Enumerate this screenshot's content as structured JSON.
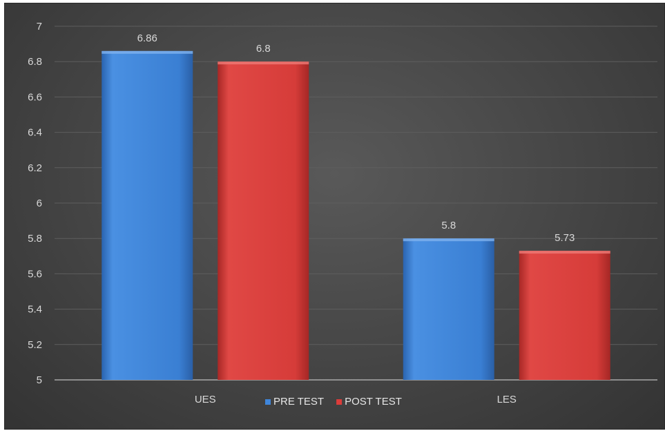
{
  "chart_data": {
    "type": "bar",
    "categories": [
      "UES",
      "LES"
    ],
    "series": [
      {
        "name": "PRE TEST",
        "values": [
          6.86,
          5.8
        ],
        "color": "#3f86db"
      },
      {
        "name": "POST TEST",
        "values": [
          6.8,
          5.73
        ],
        "color": "#dc3c3a"
      }
    ],
    "data_labels": [
      [
        "6.86",
        "5.8"
      ],
      [
        "6.8",
        "5.73"
      ]
    ],
    "ylim": [
      5,
      7
    ],
    "yticks": [
      "5",
      "5.2",
      "5.4",
      "5.6",
      "5.8",
      "6",
      "6.2",
      "6.4",
      "6.6",
      "6.8",
      "7"
    ],
    "grid": true,
    "legend_position": "bottom",
    "background_color": "#404040",
    "title": "",
    "xlabel": "",
    "ylabel": ""
  }
}
